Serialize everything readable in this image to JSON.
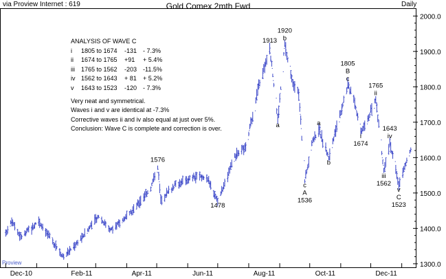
{
  "header": {
    "source": "via Proview Internet : 619",
    "title": "Gold Comex 2mth Fwd",
    "period": "Daily"
  },
  "watermark": "Proview",
  "analysis": {
    "title": "ANALYSIS OF WAVE C",
    "rows": [
      {
        "num": "i",
        "range": "1805 to 1674",
        "points": "-131",
        "pct": "- 7.3%"
      },
      {
        "num": "ii",
        "range": "1674 to 1765",
        "points": "+91",
        "pct": "+ 5.4%"
      },
      {
        "num": "iii",
        "range": "1765 to 1562",
        "points": "-203",
        "pct": "-11.5%"
      },
      {
        "num": "iv",
        "range": "1562 to 1643",
        "points": "+ 81",
        "pct": "+ 5.2%"
      },
      {
        "num": "v",
        "range": "1643 to 1523",
        "points": "-120",
        "pct": "- 7.3%"
      }
    ],
    "notes": [
      "Very neat and symmetrical.",
      "Waves i and v are identical at -7.3%",
      "Corrective waves ii and iv also equal at just over 5%.",
      "Conclusion: Wave C is complete and correction is over."
    ]
  },
  "chart_data": {
    "type": "ohlc",
    "x_axis": {
      "type": "date",
      "range": [
        "2010-11-26",
        "2012-01-15"
      ],
      "tick_labels": [
        "Dec-10",
        "Feb-11",
        "Apr-11",
        "Jun-11",
        "Aug-11",
        "Oct-11",
        "Dec-11"
      ]
    },
    "y_axis": {
      "position": "right",
      "range": [
        1290,
        2020
      ],
      "ticks": [
        1300,
        1400,
        1500,
        1600,
        1700,
        1800,
        1900,
        2000
      ],
      "tick_labels": [
        "1300.0",
        "1400.0",
        "1500.0",
        "1600.0",
        "1700.0",
        "1800.0",
        "1900.0",
        "2000.0"
      ]
    },
    "bar_color": "#3a46c8",
    "series_path": [
      [
        "2010-12-01",
        1385
      ],
      [
        "2010-12-07",
        1425
      ],
      [
        "2010-12-16",
        1375
      ],
      [
        "2011-01-03",
        1420
      ],
      [
        "2011-01-28",
        1318
      ],
      [
        "2011-02-18",
        1385
      ],
      [
        "2011-03-04",
        1435
      ],
      [
        "2011-03-16",
        1395
      ],
      [
        "2011-04-04",
        1440
      ],
      [
        "2011-04-25",
        1515
      ],
      [
        "2011-05-02",
        1576
      ],
      [
        "2011-05-05",
        1480
      ],
      [
        "2011-05-20",
        1525
      ],
      [
        "2011-06-08",
        1545
      ],
      [
        "2011-06-20",
        1545
      ],
      [
        "2011-07-01",
        1478
      ],
      [
        "2011-07-18",
        1600
      ],
      [
        "2011-07-29",
        1630
      ],
      [
        "2011-08-10",
        1790
      ],
      [
        "2011-08-22",
        1913
      ],
      [
        "2011-08-30",
        1705
      ],
      [
        "2011-09-06",
        1920
      ],
      [
        "2011-09-13",
        1820
      ],
      [
        "2011-09-20",
        1780
      ],
      [
        "2011-09-26",
        1536
      ],
      [
        "2011-10-04",
        1650
      ],
      [
        "2011-10-10",
        1680
      ],
      [
        "2011-10-20",
        1600
      ],
      [
        "2011-10-31",
        1720
      ],
      [
        "2011-11-08",
        1805
      ],
      [
        "2011-11-14",
        1770
      ],
      [
        "2011-11-21",
        1674
      ],
      [
        "2011-11-28",
        1710
      ],
      [
        "2011-12-06",
        1765
      ],
      [
        "2011-12-14",
        1562
      ],
      [
        "2011-12-20",
        1643
      ],
      [
        "2011-12-29",
        1523
      ],
      [
        "2012-01-10",
        1625
      ]
    ],
    "annotations": [
      {
        "date": "2011-05-02",
        "price": 1576,
        "text": "1576",
        "pos": "above"
      },
      {
        "date": "2011-07-01",
        "price": 1478,
        "text": "1478",
        "pos": "below"
      },
      {
        "date": "2011-08-22",
        "price": 1913,
        "text": "1913",
        "pos": "above"
      },
      {
        "date": "2011-08-30",
        "price": 1705,
        "text": "a",
        "pos": "below"
      },
      {
        "date": "2011-09-06",
        "price": 1920,
        "text": "1920",
        "pos": "above2"
      },
      {
        "date": "2011-09-06",
        "price": 1920,
        "text": "b",
        "pos": "above"
      },
      {
        "date": "2011-09-26",
        "price": 1536,
        "text": "c",
        "pos": "below"
      },
      {
        "date": "2011-09-26",
        "price": 1536,
        "text": "A",
        "pos": "below2"
      },
      {
        "date": "2011-09-26",
        "price": 1536,
        "text": "1536",
        "pos": "below3"
      },
      {
        "date": "2011-10-10",
        "price": 1680,
        "text": "a",
        "pos": "above"
      },
      {
        "date": "2011-10-20",
        "price": 1600,
        "text": "b",
        "pos": "below"
      },
      {
        "date": "2011-11-08",
        "price": 1805,
        "text": "c",
        "pos": "above"
      },
      {
        "date": "2011-11-08",
        "price": 1805,
        "text": "B",
        "pos": "above2"
      },
      {
        "date": "2011-11-08",
        "price": 1805,
        "text": "1805",
        "pos": "above3"
      },
      {
        "date": "2011-11-21",
        "price": 1674,
        "text": "i",
        "pos": "below"
      },
      {
        "date": "2011-11-21",
        "price": 1674,
        "text": "1674",
        "pos": "below2"
      },
      {
        "date": "2011-12-06",
        "price": 1765,
        "text": "ii",
        "pos": "above"
      },
      {
        "date": "2011-12-06",
        "price": 1765,
        "text": "1765",
        "pos": "above2"
      },
      {
        "date": "2011-12-14",
        "price": 1562,
        "text": "iii",
        "pos": "below"
      },
      {
        "date": "2011-12-14",
        "price": 1562,
        "text": "1562",
        "pos": "below2"
      },
      {
        "date": "2011-12-20",
        "price": 1643,
        "text": "iv",
        "pos": "above"
      },
      {
        "date": "2011-12-20",
        "price": 1643,
        "text": "1643",
        "pos": "above2"
      },
      {
        "date": "2011-12-29",
        "price": 1523,
        "text": "v",
        "pos": "below"
      },
      {
        "date": "2011-12-29",
        "price": 1523,
        "text": "C",
        "pos": "below2"
      },
      {
        "date": "2011-12-29",
        "price": 1523,
        "text": "1523",
        "pos": "below3"
      }
    ]
  }
}
